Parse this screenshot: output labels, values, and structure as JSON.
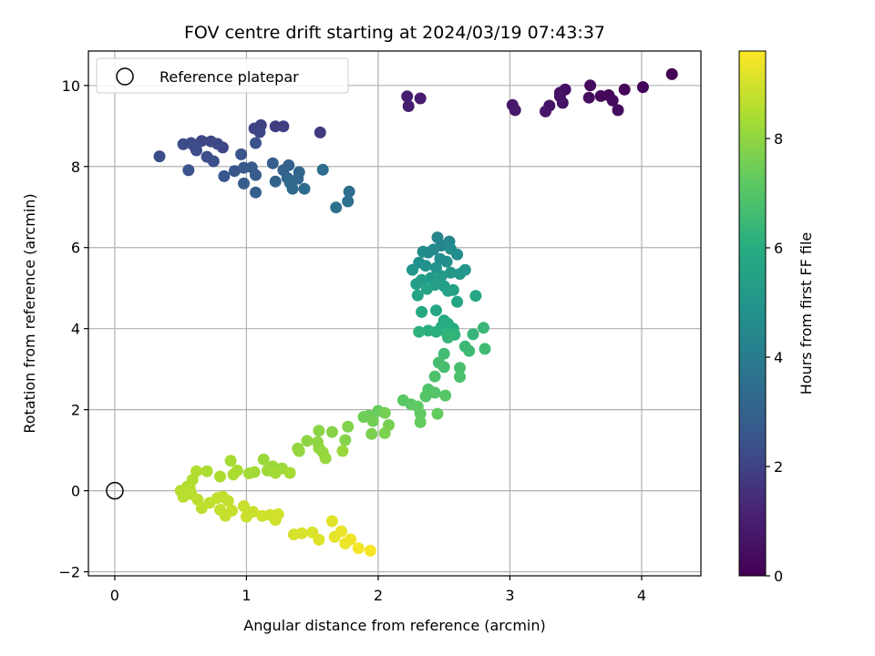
{
  "chart_data": {
    "type": "scatter",
    "title": "FOV centre drift starting at 2024/03/19 07:43:37",
    "xlabel": "Angular distance from reference (arcmin)",
    "ylabel": "Rotation from reference (arcmin)",
    "xlim": [
      -0.2,
      4.45
    ],
    "ylim": [
      -2.1,
      10.85
    ],
    "xticks": [
      0,
      1,
      2,
      3,
      4
    ],
    "yticks": [
      -2,
      0,
      2,
      4,
      6,
      8,
      10
    ],
    "grid": true,
    "legend": {
      "placement": "top-left",
      "entries": [
        "Reference platepar"
      ]
    },
    "reference_point": {
      "x": 0,
      "y": 0
    },
    "colorbar": {
      "label": "Hours from first FF file",
      "range": [
        0,
        9.6
      ],
      "ticks": [
        0,
        2,
        4,
        6,
        8
      ],
      "colormap": "viridis"
    },
    "points": [
      {
        "x": 4.23,
        "y": 10.28,
        "h": 0.05
      },
      {
        "x": 4.01,
        "y": 9.96,
        "h": 0.1
      },
      {
        "x": 3.87,
        "y": 9.9,
        "h": 0.15
      },
      {
        "x": 3.75,
        "y": 9.76,
        "h": 0.2
      },
      {
        "x": 3.69,
        "y": 9.74,
        "h": 0.25
      },
      {
        "x": 3.78,
        "y": 9.63,
        "h": 0.3
      },
      {
        "x": 3.61,
        "y": 10.0,
        "h": 0.35
      },
      {
        "x": 3.82,
        "y": 9.39,
        "h": 0.4
      },
      {
        "x": 3.6,
        "y": 9.7,
        "h": 0.45
      },
      {
        "x": 3.42,
        "y": 9.9,
        "h": 0.5
      },
      {
        "x": 3.38,
        "y": 9.82,
        "h": 0.55
      },
      {
        "x": 3.38,
        "y": 9.73,
        "h": 0.6
      },
      {
        "x": 3.4,
        "y": 9.57,
        "h": 0.65
      },
      {
        "x": 3.3,
        "y": 9.5,
        "h": 0.7
      },
      {
        "x": 3.27,
        "y": 9.36,
        "h": 0.75
      },
      {
        "x": 3.02,
        "y": 9.52,
        "h": 0.8
      },
      {
        "x": 3.04,
        "y": 9.39,
        "h": 0.85
      },
      {
        "x": 2.32,
        "y": 9.68,
        "h": 0.9
      },
      {
        "x": 2.22,
        "y": 9.73,
        "h": 0.95
      },
      {
        "x": 2.23,
        "y": 9.49,
        "h": 1.0
      },
      {
        "x": 1.56,
        "y": 8.84,
        "h": 1.8
      },
      {
        "x": 1.22,
        "y": 8.99,
        "h": 1.85
      },
      {
        "x": 1.28,
        "y": 8.99,
        "h": 1.9
      },
      {
        "x": 1.11,
        "y": 9.02,
        "h": 1.95
      },
      {
        "x": 1.06,
        "y": 8.94,
        "h": 2.0
      },
      {
        "x": 1.1,
        "y": 8.85,
        "h": 2.05
      },
      {
        "x": 0.82,
        "y": 8.47,
        "h": 2.1
      },
      {
        "x": 0.66,
        "y": 8.63,
        "h": 2.12
      },
      {
        "x": 0.73,
        "y": 8.62,
        "h": 2.15
      },
      {
        "x": 0.78,
        "y": 8.56,
        "h": 2.18
      },
      {
        "x": 0.58,
        "y": 8.58,
        "h": 2.2
      },
      {
        "x": 0.52,
        "y": 8.55,
        "h": 2.22
      },
      {
        "x": 0.6,
        "y": 8.52,
        "h": 2.25
      },
      {
        "x": 0.62,
        "y": 8.4,
        "h": 2.28
      },
      {
        "x": 0.34,
        "y": 8.25,
        "h": 2.3
      },
      {
        "x": 0.7,
        "y": 8.24,
        "h": 2.33
      },
      {
        "x": 0.75,
        "y": 8.13,
        "h": 2.36
      },
      {
        "x": 0.56,
        "y": 7.91,
        "h": 2.4
      },
      {
        "x": 1.07,
        "y": 8.58,
        "h": 2.45
      },
      {
        "x": 0.96,
        "y": 8.3,
        "h": 2.5
      },
      {
        "x": 0.91,
        "y": 7.89,
        "h": 2.55
      },
      {
        "x": 0.83,
        "y": 7.76,
        "h": 2.6
      },
      {
        "x": 0.98,
        "y": 7.97,
        "h": 2.65
      },
      {
        "x": 1.04,
        "y": 7.98,
        "h": 2.7
      },
      {
        "x": 1.07,
        "y": 7.79,
        "h": 2.75
      },
      {
        "x": 0.98,
        "y": 7.58,
        "h": 2.8
      },
      {
        "x": 1.07,
        "y": 7.36,
        "h": 2.85
      },
      {
        "x": 1.2,
        "y": 8.08,
        "h": 2.9
      },
      {
        "x": 1.32,
        "y": 8.03,
        "h": 2.95
      },
      {
        "x": 1.28,
        "y": 7.91,
        "h": 3.0
      },
      {
        "x": 1.22,
        "y": 7.63,
        "h": 3.05
      },
      {
        "x": 1.31,
        "y": 7.72,
        "h": 3.1
      },
      {
        "x": 1.4,
        "y": 7.86,
        "h": 3.15
      },
      {
        "x": 1.39,
        "y": 7.7,
        "h": 3.2
      },
      {
        "x": 1.33,
        "y": 7.6,
        "h": 3.25
      },
      {
        "x": 1.35,
        "y": 7.45,
        "h": 3.3
      },
      {
        "x": 1.44,
        "y": 7.45,
        "h": 3.35
      },
      {
        "x": 1.58,
        "y": 7.92,
        "h": 3.4
      },
      {
        "x": 1.78,
        "y": 7.38,
        "h": 3.45
      },
      {
        "x": 1.77,
        "y": 7.14,
        "h": 3.5
      },
      {
        "x": 1.68,
        "y": 6.99,
        "h": 3.55
      },
      {
        "x": 2.45,
        "y": 6.25,
        "h": 4.3
      },
      {
        "x": 2.48,
        "y": 6.05,
        "h": 4.35
      },
      {
        "x": 2.54,
        "y": 6.15,
        "h": 4.4
      },
      {
        "x": 2.42,
        "y": 5.95,
        "h": 4.45
      },
      {
        "x": 2.38,
        "y": 5.88,
        "h": 4.5
      },
      {
        "x": 2.34,
        "y": 5.9,
        "h": 4.55
      },
      {
        "x": 2.55,
        "y": 5.97,
        "h": 4.6
      },
      {
        "x": 2.6,
        "y": 5.83,
        "h": 4.65
      },
      {
        "x": 2.47,
        "y": 5.72,
        "h": 4.7
      },
      {
        "x": 2.52,
        "y": 5.65,
        "h": 4.75
      },
      {
        "x": 2.31,
        "y": 5.63,
        "h": 4.8
      },
      {
        "x": 2.36,
        "y": 5.55,
        "h": 4.85
      },
      {
        "x": 2.44,
        "y": 5.5,
        "h": 4.9
      },
      {
        "x": 2.26,
        "y": 5.45,
        "h": 4.95
      },
      {
        "x": 2.66,
        "y": 5.45,
        "h": 5.0
      },
      {
        "x": 2.62,
        "y": 5.35,
        "h": 5.05
      },
      {
        "x": 2.55,
        "y": 5.38,
        "h": 5.1
      },
      {
        "x": 2.48,
        "y": 5.3,
        "h": 5.15
      },
      {
        "x": 2.4,
        "y": 5.25,
        "h": 5.2
      },
      {
        "x": 2.33,
        "y": 5.2,
        "h": 5.25
      },
      {
        "x": 2.29,
        "y": 5.1,
        "h": 5.3
      },
      {
        "x": 2.43,
        "y": 5.08,
        "h": 5.35
      },
      {
        "x": 2.5,
        "y": 5.05,
        "h": 5.4
      },
      {
        "x": 2.57,
        "y": 4.95,
        "h": 5.45
      },
      {
        "x": 2.53,
        "y": 4.93,
        "h": 5.5
      },
      {
        "x": 2.37,
        "y": 4.98,
        "h": 5.55
      },
      {
        "x": 2.3,
        "y": 4.82,
        "h": 5.6
      },
      {
        "x": 2.6,
        "y": 4.66,
        "h": 5.65
      },
      {
        "x": 2.74,
        "y": 4.81,
        "h": 5.7
      },
      {
        "x": 2.44,
        "y": 4.45,
        "h": 5.75
      },
      {
        "x": 2.33,
        "y": 4.41,
        "h": 5.8
      },
      {
        "x": 2.5,
        "y": 4.2,
        "h": 5.85
      },
      {
        "x": 2.53,
        "y": 4.12,
        "h": 5.9
      },
      {
        "x": 2.48,
        "y": 4.04,
        "h": 5.95
      },
      {
        "x": 2.57,
        "y": 4.0,
        "h": 6.0
      },
      {
        "x": 2.44,
        "y": 3.92,
        "h": 6.05
      },
      {
        "x": 2.38,
        "y": 3.95,
        "h": 6.1
      },
      {
        "x": 2.31,
        "y": 3.92,
        "h": 6.15
      },
      {
        "x": 2.52,
        "y": 3.88,
        "h": 6.2
      },
      {
        "x": 2.58,
        "y": 3.85,
        "h": 6.25
      },
      {
        "x": 2.53,
        "y": 3.78,
        "h": 6.3
      },
      {
        "x": 2.72,
        "y": 3.86,
        "h": 6.35
      },
      {
        "x": 2.8,
        "y": 4.02,
        "h": 6.4
      },
      {
        "x": 2.66,
        "y": 3.56,
        "h": 6.45
      },
      {
        "x": 2.69,
        "y": 3.45,
        "h": 6.5
      },
      {
        "x": 2.81,
        "y": 3.5,
        "h": 6.55
      },
      {
        "x": 2.5,
        "y": 3.38,
        "h": 6.6
      },
      {
        "x": 2.46,
        "y": 3.16,
        "h": 6.65
      },
      {
        "x": 2.5,
        "y": 3.05,
        "h": 6.7
      },
      {
        "x": 2.62,
        "y": 3.03,
        "h": 6.75
      },
      {
        "x": 2.62,
        "y": 2.81,
        "h": 6.8
      },
      {
        "x": 2.43,
        "y": 2.82,
        "h": 6.85
      },
      {
        "x": 2.38,
        "y": 2.5,
        "h": 6.9
      },
      {
        "x": 2.43,
        "y": 2.42,
        "h": 6.95
      },
      {
        "x": 2.36,
        "y": 2.33,
        "h": 7.0
      },
      {
        "x": 2.51,
        "y": 2.35,
        "h": 7.05
      },
      {
        "x": 2.19,
        "y": 2.23,
        "h": 7.1
      },
      {
        "x": 2.25,
        "y": 2.13,
        "h": 7.15
      },
      {
        "x": 2.3,
        "y": 2.08,
        "h": 7.2
      },
      {
        "x": 2.32,
        "y": 1.9,
        "h": 7.25
      },
      {
        "x": 2.45,
        "y": 1.9,
        "h": 7.28
      },
      {
        "x": 2.32,
        "y": 1.69,
        "h": 7.3
      },
      {
        "x": 2.0,
        "y": 1.97,
        "h": 7.35
      },
      {
        "x": 1.93,
        "y": 1.85,
        "h": 7.4
      },
      {
        "x": 1.89,
        "y": 1.82,
        "h": 7.45
      },
      {
        "x": 1.96,
        "y": 1.72,
        "h": 7.5
      },
      {
        "x": 2.05,
        "y": 1.92,
        "h": 7.55
      },
      {
        "x": 2.08,
        "y": 1.62,
        "h": 7.6
      },
      {
        "x": 1.95,
        "y": 1.4,
        "h": 7.65
      },
      {
        "x": 2.05,
        "y": 1.42,
        "h": 7.7
      },
      {
        "x": 1.77,
        "y": 1.58,
        "h": 7.75
      },
      {
        "x": 1.75,
        "y": 1.25,
        "h": 7.8
      },
      {
        "x": 1.65,
        "y": 1.45,
        "h": 7.85
      },
      {
        "x": 1.55,
        "y": 1.48,
        "h": 7.9
      },
      {
        "x": 1.54,
        "y": 1.2,
        "h": 7.95
      },
      {
        "x": 1.46,
        "y": 1.23,
        "h": 7.98
      },
      {
        "x": 1.55,
        "y": 1.05,
        "h": 8.0
      },
      {
        "x": 1.39,
        "y": 1.04,
        "h": 8.02
      },
      {
        "x": 1.4,
        "y": 0.98,
        "h": 8.05
      },
      {
        "x": 1.58,
        "y": 0.95,
        "h": 8.08
      },
      {
        "x": 1.6,
        "y": 0.8,
        "h": 8.1
      },
      {
        "x": 1.73,
        "y": 0.98,
        "h": 8.12
      },
      {
        "x": 1.13,
        "y": 0.77,
        "h": 8.15
      },
      {
        "x": 1.2,
        "y": 0.6,
        "h": 8.18
      },
      {
        "x": 1.27,
        "y": 0.55,
        "h": 8.2
      },
      {
        "x": 1.16,
        "y": 0.5,
        "h": 8.22
      },
      {
        "x": 1.06,
        "y": 0.46,
        "h": 8.25
      },
      {
        "x": 1.02,
        "y": 0.43,
        "h": 8.28
      },
      {
        "x": 1.22,
        "y": 0.44,
        "h": 8.3
      },
      {
        "x": 1.33,
        "y": 0.44,
        "h": 8.32
      },
      {
        "x": 0.88,
        "y": 0.74,
        "h": 8.35
      },
      {
        "x": 0.93,
        "y": 0.5,
        "h": 8.38
      },
      {
        "x": 0.9,
        "y": 0.4,
        "h": 8.4
      },
      {
        "x": 0.7,
        "y": 0.48,
        "h": 8.42
      },
      {
        "x": 0.8,
        "y": 0.35,
        "h": 8.45
      },
      {
        "x": 0.62,
        "y": 0.48,
        "h": 8.48
      },
      {
        "x": 0.59,
        "y": 0.27,
        "h": 8.5
      },
      {
        "x": 0.55,
        "y": 0.1,
        "h": 8.52
      },
      {
        "x": 0.5,
        "y": 0.0,
        "h": 8.55
      },
      {
        "x": 0.57,
        "y": 0.05,
        "h": 8.57
      },
      {
        "x": 0.52,
        "y": -0.15,
        "h": 8.6
      },
      {
        "x": 0.58,
        "y": -0.08,
        "h": 8.62
      },
      {
        "x": 0.63,
        "y": -0.22,
        "h": 8.65
      },
      {
        "x": 0.66,
        "y": -0.43,
        "h": 8.67
      },
      {
        "x": 0.72,
        "y": -0.3,
        "h": 8.7
      },
      {
        "x": 0.78,
        "y": -0.18,
        "h": 8.72
      },
      {
        "x": 0.82,
        "y": -0.15,
        "h": 8.74
      },
      {
        "x": 0.86,
        "y": -0.25,
        "h": 8.76
      },
      {
        "x": 0.8,
        "y": -0.47,
        "h": 8.78
      },
      {
        "x": 0.84,
        "y": -0.62,
        "h": 8.8
      },
      {
        "x": 0.89,
        "y": -0.49,
        "h": 8.82
      },
      {
        "x": 0.98,
        "y": -0.38,
        "h": 8.84
      },
      {
        "x": 1.05,
        "y": -0.52,
        "h": 8.86
      },
      {
        "x": 1.0,
        "y": -0.64,
        "h": 8.88
      },
      {
        "x": 1.12,
        "y": -0.62,
        "h": 8.9
      },
      {
        "x": 1.18,
        "y": -0.6,
        "h": 8.92
      },
      {
        "x": 1.22,
        "y": -0.72,
        "h": 8.94
      },
      {
        "x": 1.24,
        "y": -0.58,
        "h": 8.96
      },
      {
        "x": 1.36,
        "y": -1.08,
        "h": 9.0
      },
      {
        "x": 1.42,
        "y": -1.05,
        "h": 9.05
      },
      {
        "x": 1.5,
        "y": -1.03,
        "h": 9.1
      },
      {
        "x": 1.55,
        "y": -1.21,
        "h": 9.15
      },
      {
        "x": 1.65,
        "y": -0.75,
        "h": 9.2
      },
      {
        "x": 1.67,
        "y": -1.14,
        "h": 9.25
      },
      {
        "x": 1.72,
        "y": -1.0,
        "h": 9.3
      },
      {
        "x": 1.75,
        "y": -1.3,
        "h": 9.35
      },
      {
        "x": 1.79,
        "y": -1.2,
        "h": 9.4
      },
      {
        "x": 1.85,
        "y": -1.42,
        "h": 9.45
      },
      {
        "x": 1.94,
        "y": -1.48,
        "h": 9.5
      }
    ]
  }
}
